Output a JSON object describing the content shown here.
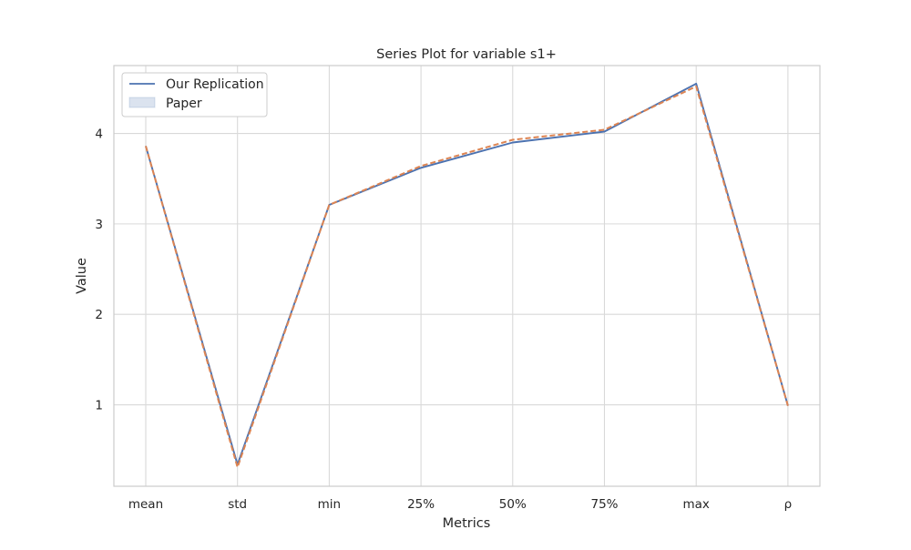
{
  "chart_data": {
    "type": "line",
    "title": "Series Plot for variable s1+",
    "xlabel": "Metrics",
    "ylabel": "Value",
    "categories": [
      "mean",
      "std",
      "min",
      "25%",
      "50%",
      "75%",
      "max",
      "ρ"
    ],
    "yticks": [
      1,
      2,
      3,
      4
    ],
    "ylim": [
      0.1,
      4.75
    ],
    "grid": true,
    "legend_position": "top-left",
    "series": [
      {
        "name": "Our Replication",
        "values": [
          3.86,
          0.34,
          3.21,
          3.62,
          3.9,
          4.02,
          4.55,
          0.99
        ],
        "color": "#4c72b0",
        "style": "solid"
      },
      {
        "name": "",
        "values": [
          3.86,
          0.31,
          3.21,
          3.64,
          3.93,
          4.04,
          4.52,
          0.99
        ],
        "color": "#dd8452",
        "style": "dashed"
      }
    ],
    "legend_entries": [
      {
        "label": "Our Replication",
        "marker": "line",
        "color": "#4c72b0"
      },
      {
        "label": "Paper",
        "marker": "patch",
        "color": "#4c72b0"
      }
    ]
  }
}
